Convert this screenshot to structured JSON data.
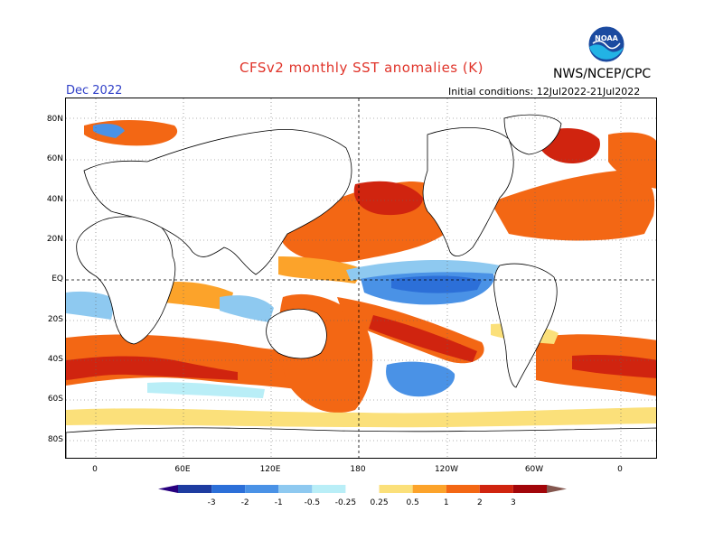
{
  "header": {
    "title": "CFSv2 monthly SST anomalies (K)",
    "agency": "NWS/NCEP/CPC",
    "valid": "Dec 2022",
    "init": "Initial conditions: 12Jul2022-21Jul2022",
    "logo_text": "NOAA"
  },
  "axes": {
    "lat_labels": [
      "80N",
      "60N",
      "40N",
      "20N",
      "EQ",
      "20S",
      "40S",
      "60S",
      "80S"
    ],
    "lon_labels": [
      "0",
      "60E",
      "120E",
      "180",
      "120W",
      "60W",
      "0"
    ]
  },
  "colorbar": {
    "labels": [
      "-3",
      "-2",
      "-1",
      "-0.5",
      "-0.25",
      "0.25",
      "0.5",
      "1",
      "2",
      "3"
    ],
    "colors": [
      "#28007f",
      "#1e3ca0",
      "#2c6fd8",
      "#4a92e6",
      "#8ec9f0",
      "#b9eef7",
      "#ffffff",
      "#fbe07a",
      "#fca32a",
      "#f36714",
      "#d0240f",
      "#a2060a",
      "#84574f"
    ]
  },
  "anomaly_colors": {
    "strong_warm": "#d0240f",
    "warm": "#f36714",
    "mild_warm": "#fca32a",
    "weak_warm": "#fbe07a",
    "weak_cool": "#b9eef7",
    "mild_cool": "#8ec9f0",
    "cool": "#4a92e6",
    "strong_cool": "#2c6fd8"
  }
}
